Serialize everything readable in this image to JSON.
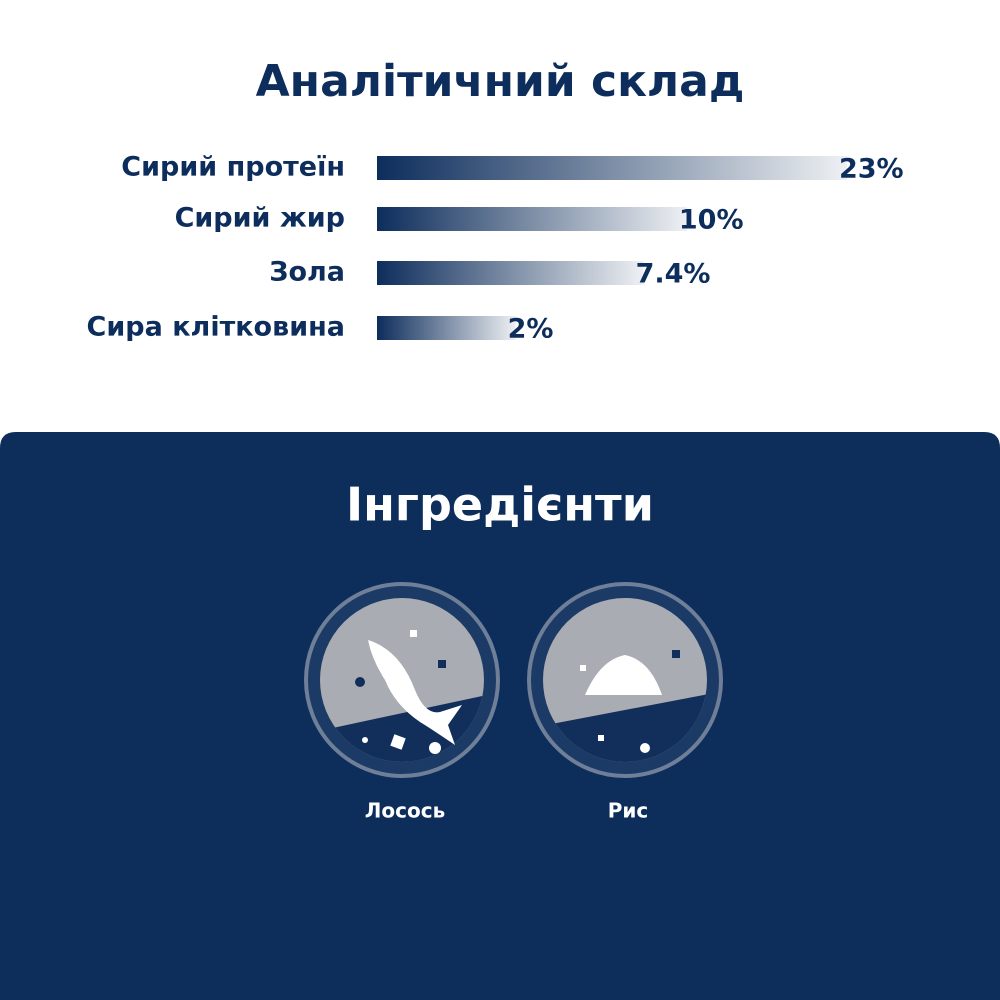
{
  "chart_data": {
    "type": "bar",
    "title": "Аналітичний склад",
    "categories": [
      "Сирий протеїн",
      "Сирий жир",
      "Зола",
      "Сира клітковина"
    ],
    "values": [
      23,
      10,
      7.4,
      2
    ],
    "value_labels": [
      "23%",
      "10%",
      "7.4%",
      "2%"
    ],
    "color": "#0d2d5c"
  },
  "ingredients": {
    "title": "Інгредієнти",
    "items": [
      "Лосось",
      "Рис"
    ]
  }
}
